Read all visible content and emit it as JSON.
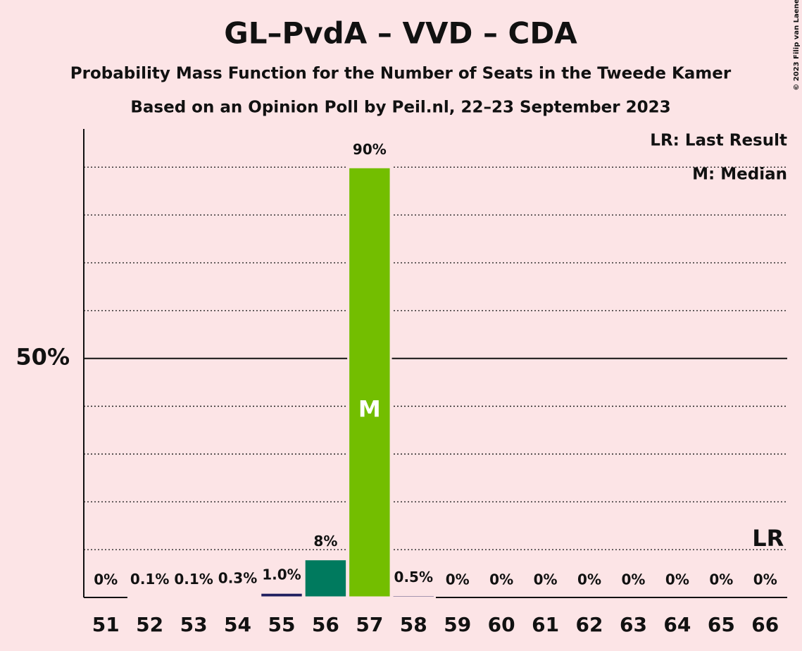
{
  "chart_data": {
    "type": "bar",
    "title": "GL–PvdA – VVD – CDA",
    "subtitle": "Probability Mass Function for the Number of Seats in the Tweede Kamer",
    "subtitle2": "Based on an Opinion Poll by Peil.nl, 22–23 September 2023",
    "copyright": "© 2023 Filip van Laenen",
    "categories": [
      "51",
      "52",
      "53",
      "54",
      "55",
      "56",
      "57",
      "58",
      "59",
      "60",
      "61",
      "62",
      "63",
      "64",
      "65",
      "66"
    ],
    "values": [
      0,
      0.1,
      0.1,
      0.3,
      1.0,
      8,
      90,
      0.5,
      0,
      0,
      0,
      0,
      0,
      0,
      0,
      0
    ],
    "value_labels": [
      "0%",
      "0.1%",
      "0.1%",
      "0.3%",
      "1.0%",
      "8%",
      "90%",
      "0.5%",
      "0%",
      "0%",
      "0%",
      "0%",
      "0%",
      "0%",
      "0%",
      "0%"
    ],
    "colors": [
      "#1f1f5f",
      "#1f1f5f",
      "#1f1f5f",
      "#1f1f5f",
      "#1f1f5f",
      "#007a5e",
      "#73be00",
      "#1f1f5f",
      "#1f1f5f",
      "#1f1f5f",
      "#1f1f5f",
      "#1f1f5f",
      "#1f1f5f",
      "#1f1f5f",
      "#1f1f5f",
      "#1f1f5f"
    ],
    "ylim": [
      0,
      98
    ],
    "yticks": [
      {
        "value": 50,
        "label": "50%"
      }
    ],
    "minor_gridlines": [
      10,
      20,
      30,
      40,
      60,
      70,
      80,
      90
    ],
    "annotations": [
      {
        "text": "M",
        "category": "57"
      },
      {
        "text": "LR",
        "category": "66"
      }
    ],
    "legend": [
      "LR: Last Result",
      "M: Median"
    ]
  }
}
